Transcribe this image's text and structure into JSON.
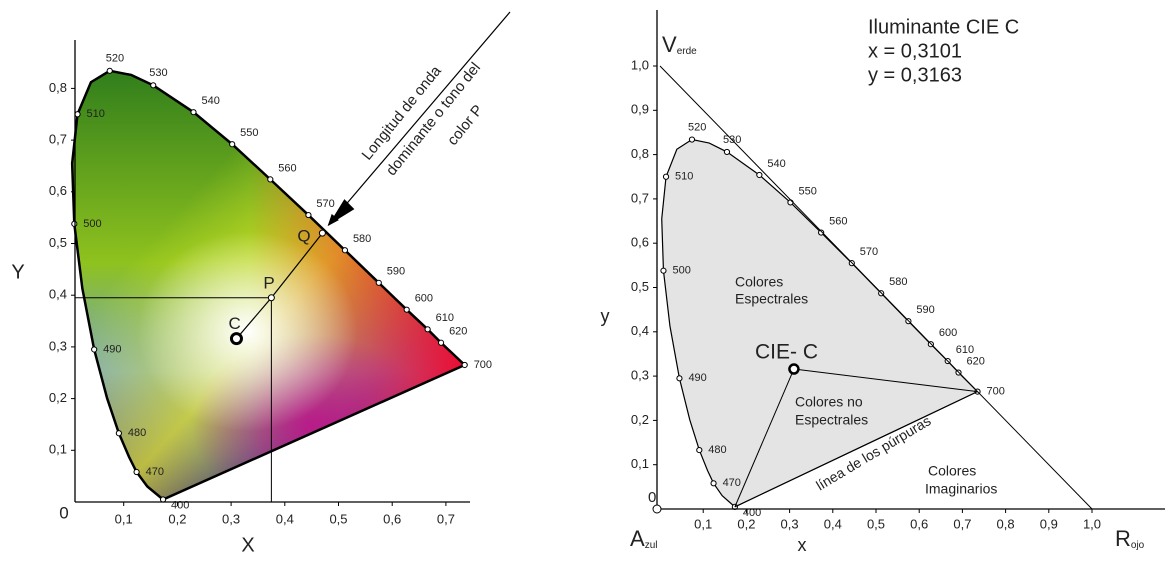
{
  "left": {
    "y_label": "Y",
    "x_label": "X",
    "origin": "0",
    "xticks": [
      "0,1",
      "0,2",
      "0,3",
      "0,4",
      "0,5",
      "0,6",
      "0,7"
    ],
    "yticks": [
      "0,1",
      "0,2",
      "0,3",
      "0,4",
      "0,5",
      "0,6",
      "0,7",
      "0,8"
    ],
    "wavelengths": [
      "400",
      "470",
      "480",
      "490",
      "500",
      "510",
      "520",
      "530",
      "540",
      "550",
      "560",
      "570",
      "580",
      "590",
      "600",
      "610",
      "620",
      "700"
    ],
    "points": {
      "c": "C",
      "p": "P",
      "q": "Q"
    },
    "annotation": [
      "Longitud de onda",
      "dominante o tono del",
      "color P"
    ]
  },
  "right": {
    "y_label": "y",
    "x_label": "x",
    "origin": "0",
    "xticks": [
      "0,1",
      "0,2",
      "0,3",
      "0,4",
      "0,5",
      "0,6",
      "0,7",
      "0,8",
      "0,9",
      "1,0"
    ],
    "yticks": [
      "0,1",
      "0,2",
      "0,3",
      "0,4",
      "0,5",
      "0,6",
      "0,7",
      "0,8",
      "0,9",
      "1,0"
    ],
    "wavelengths": [
      "400",
      "470",
      "480",
      "490",
      "500",
      "510",
      "520",
      "530",
      "540",
      "550",
      "560",
      "570",
      "580",
      "590",
      "600",
      "610",
      "620",
      "700"
    ],
    "illuminant": [
      "Iluminante CIE C",
      "x = 0,3101",
      "y = 0,3163"
    ],
    "verde": {
      "letter": "V",
      "rest": "erde"
    },
    "azul": {
      "letter": "A",
      "rest": "zul"
    },
    "rojo": {
      "letter": "R",
      "rest": "ojo"
    },
    "spectral": [
      "Colores",
      "Espectrales"
    ],
    "cie_c": "CIE- C",
    "non_spectral": [
      "Colores no",
      "Espectrales"
    ],
    "purple_line": "línea  de los púrpuras",
    "imaginary": [
      "Colores",
      "Imaginarios"
    ]
  }
}
